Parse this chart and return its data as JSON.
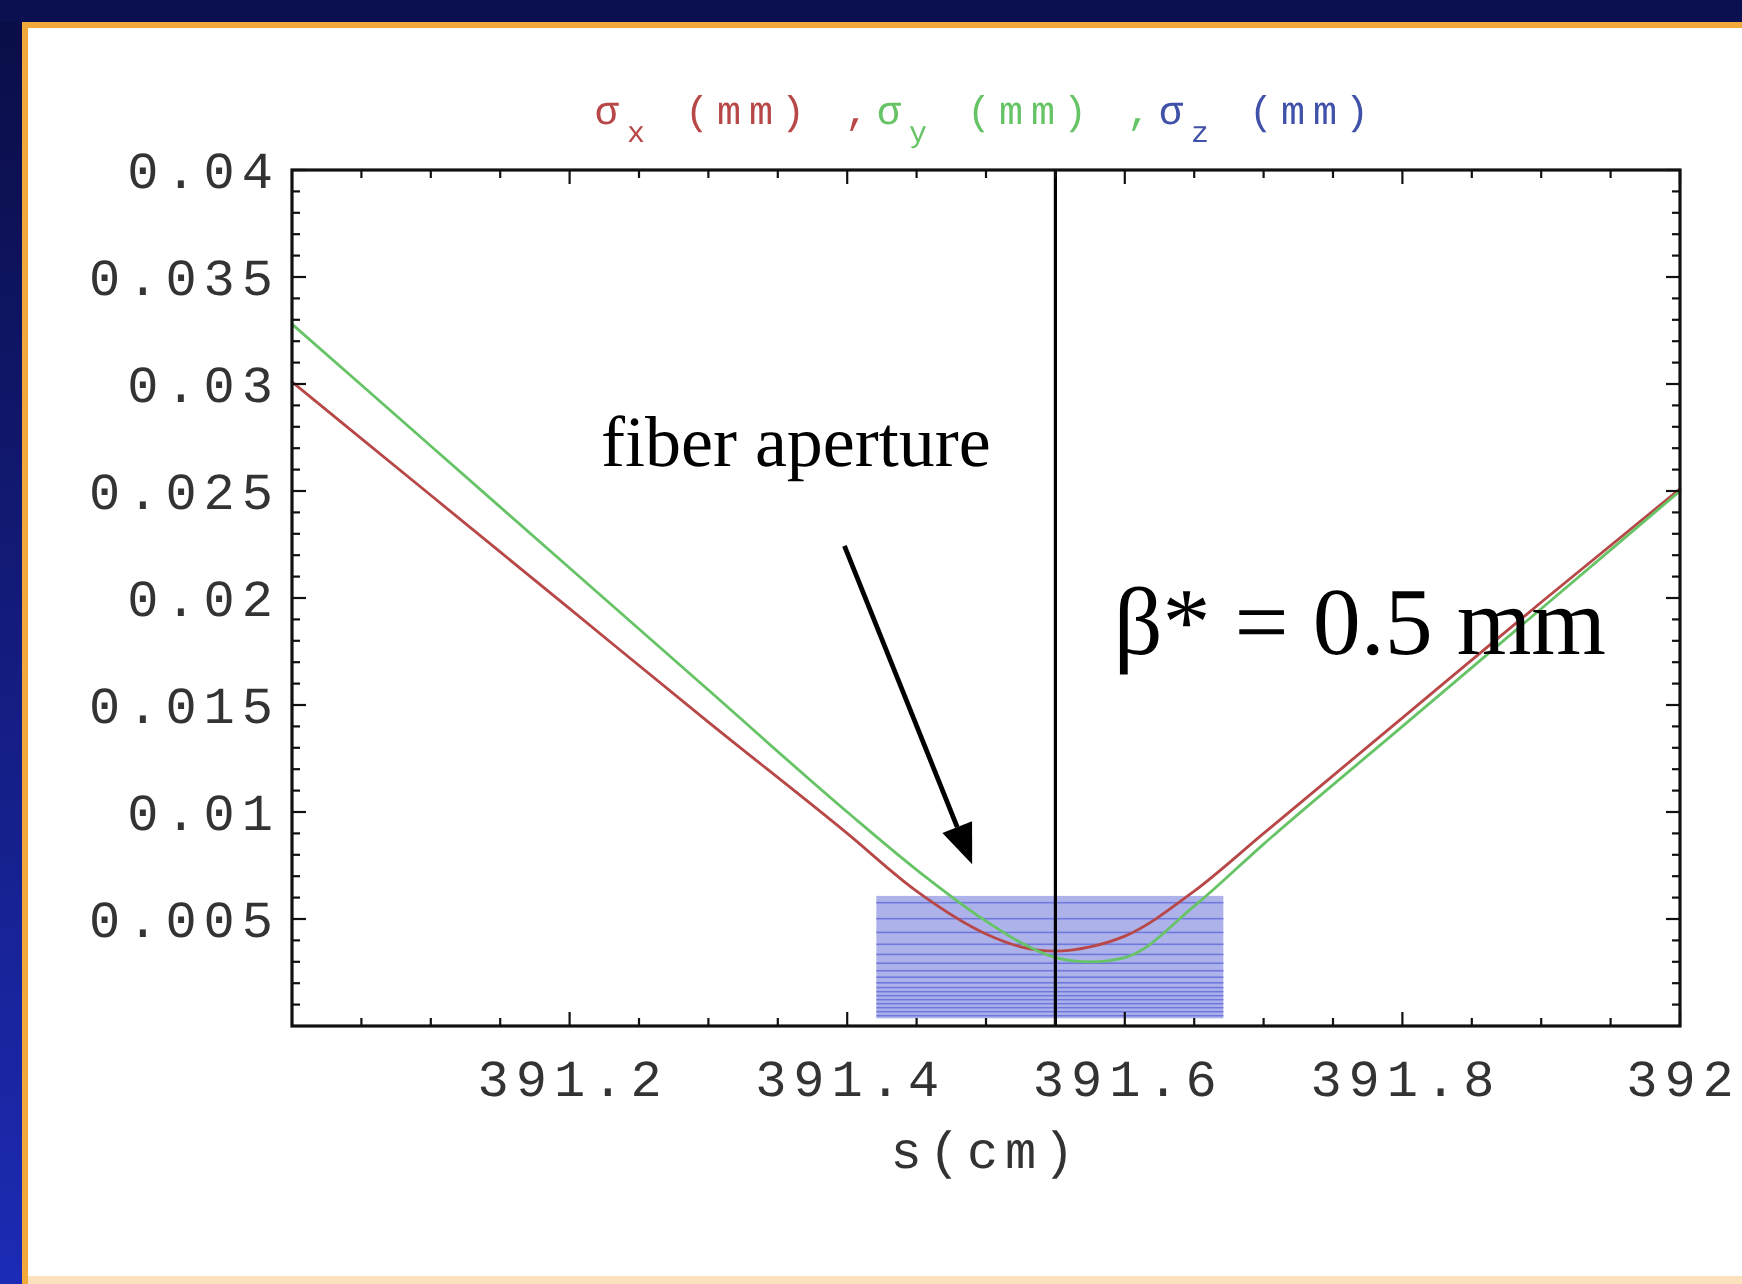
{
  "chart_data": {
    "type": "line",
    "x": [
      391,
      391.1,
      391.2,
      391.3,
      391.4,
      391.45,
      391.5,
      391.525,
      391.55,
      391.575,
      391.6,
      391.65,
      391.7,
      391.8,
      391.9,
      392
    ],
    "series": [
      {
        "name": "σ$_{x}$ (mm) ,",
        "color": "#b84848",
        "values": [
          0.0301,
          0.0248,
          0.0195,
          0.0142,
          0.009,
          0.0063,
          0.0043,
          0.0037,
          0.0035,
          0.0037,
          0.0042,
          0.0063,
          0.009,
          0.0144,
          0.0198,
          0.0251
        ]
      },
      {
        "name": "σ$_{y}$ (mm) ,",
        "color": "#66c466",
        "values": [
          0.0328,
          0.0271,
          0.0214,
          0.0157,
          0.01,
          0.0073,
          0.0049,
          0.0039,
          0.0032,
          0.003,
          0.0032,
          0.0056,
          0.0085,
          0.014,
          0.0195,
          0.025
        ]
      },
      {
        "name": "σ$_{z}$ (mm)",
        "color": "#3f51a8",
        "values": [
          null,
          null,
          null,
          null,
          null,
          null,
          null,
          null,
          null,
          null,
          null,
          null,
          null,
          null,
          null,
          null
        ]
      }
    ],
    "xlim": [
      391,
      392
    ],
    "ylim": [
      0,
      0.04
    ],
    "xticks": [
      {
        "value": 391.05,
        "label": null
      },
      {
        "value": 391.1,
        "label": null
      },
      {
        "value": 391.15,
        "label": null
      },
      391.2,
      {
        "value": 391.25,
        "label": null
      },
      {
        "value": 391.3,
        "label": null
      },
      {
        "value": 391.35,
        "label": null
      },
      391.4,
      {
        "value": 391.45,
        "label": null
      },
      {
        "value": 391.5,
        "label": null
      },
      {
        "value": 391.55,
        "label": null
      },
      391.6,
      {
        "value": 391.65,
        "label": null
      },
      {
        "value": 391.7,
        "label": null
      },
      {
        "value": 391.75,
        "label": null
      },
      391.8,
      {
        "value": 391.85,
        "label": null
      },
      {
        "value": 391.9,
        "label": null
      },
      {
        "value": 391.95,
        "label": null
      },
      392
    ],
    "yticks": [
      {
        "value": 0.001,
        "label": null
      },
      {
        "value": 0.002,
        "label": null
      },
      {
        "value": 0.003,
        "label": null
      },
      {
        "value": 0.004,
        "label": null
      },
      0.005,
      {
        "value": 0.006,
        "label": null
      },
      {
        "value": 0.007,
        "label": null
      },
      {
        "value": 0.008,
        "label": null
      },
      {
        "value": 0.009,
        "label": null
      },
      0.01,
      {
        "value": 0.011,
        "label": null
      },
      {
        "value": 0.012,
        "label": null
      },
      {
        "value": 0.013,
        "label": null
      },
      {
        "value": 0.014,
        "label": null
      },
      0.015,
      {
        "value": 0.016,
        "label": null
      },
      {
        "value": 0.017,
        "label": null
      },
      {
        "value": 0.018,
        "label": null
      },
      {
        "value": 0.019,
        "label": null
      },
      0.02,
      {
        "value": 0.021,
        "label": null
      },
      {
        "value": 0.022,
        "label": null
      },
      {
        "value": 0.023,
        "label": null
      },
      {
        "value": 0.024,
        "label": null
      },
      0.025,
      {
        "value": 0.026,
        "label": null
      },
      {
        "value": 0.027,
        "label": null
      },
      {
        "value": 0.028,
        "label": null
      },
      {
        "value": 0.029,
        "label": null
      },
      0.03,
      {
        "value": 0.031,
        "label": null
      },
      {
        "value": 0.032,
        "label": null
      },
      {
        "value": 0.033,
        "label": null
      },
      {
        "value": 0.034,
        "label": null
      },
      0.035,
      {
        "value": 0.036,
        "label": null
      },
      {
        "value": 0.037,
        "label": null
      },
      {
        "value": 0.038,
        "label": null
      },
      {
        "value": 0.039,
        "label": null
      },
      0.04
    ],
    "xlabel": "s(cm)",
    "legend": "top",
    "ref_lines": [
      {
        "axis": "x",
        "value": 391.55
      }
    ],
    "annotations": [
      "fiber aperture",
      "β* = 0.5 mm"
    ]
  }
}
